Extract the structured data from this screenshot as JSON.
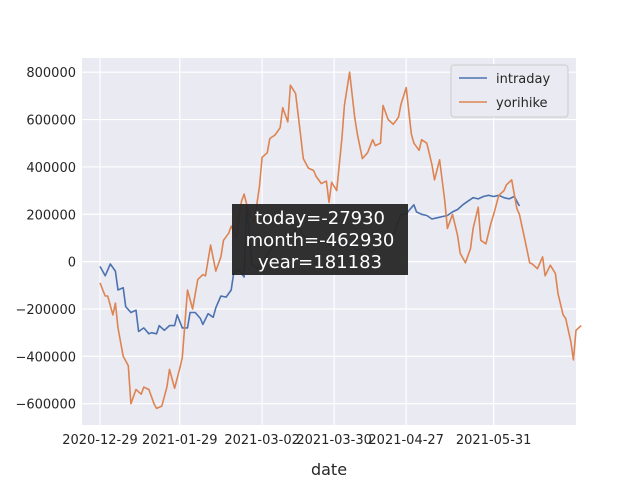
{
  "chart_data": {
    "type": "line",
    "xlabel": "date",
    "ylabel": "",
    "x_range": [
      "2020-12-22",
      "2021-07-02"
    ],
    "ylim": [
      -690000,
      860000
    ],
    "grid": true,
    "legend_position": "top-right",
    "x_ticks": [
      "2020-12-29",
      "2021-01-29",
      "2021-03-02",
      "2021-03-30",
      "2021-04-27",
      "2021-05-31"
    ],
    "y_ticks": [
      -600000,
      -400000,
      -200000,
      0,
      200000,
      400000,
      600000,
      800000
    ],
    "y_tick_labels": [
      "−600000",
      "−400000",
      "−200000",
      "0",
      "200000",
      "400000",
      "600000",
      "800000"
    ],
    "annotation": {
      "lines": [
        "today=-27930",
        "month=-462930",
        "year=181183"
      ],
      "anchor_date": "2021-03-02",
      "anchor_value": 110000
    },
    "colors": {
      "plot_background": "#eaeaf2",
      "grid": "#ffffff",
      "annotation_background": "#262626",
      "annotation_text": "#ffffff"
    },
    "series": [
      {
        "name": "intraday",
        "color": "#4c72b0",
        "points": [
          [
            "2020-12-29",
            -20000
          ],
          [
            "2020-12-31",
            -60000
          ],
          [
            "2021-01-02",
            -10000
          ],
          [
            "2021-01-04",
            -40000
          ],
          [
            "2021-01-05",
            -120000
          ],
          [
            "2021-01-07",
            -110000
          ],
          [
            "2021-01-08",
            -190000
          ],
          [
            "2021-01-10",
            -215000
          ],
          [
            "2021-01-12",
            -205000
          ],
          [
            "2021-01-13",
            -295000
          ],
          [
            "2021-01-15",
            -280000
          ],
          [
            "2021-01-17",
            -305000
          ],
          [
            "2021-01-18",
            -300000
          ],
          [
            "2021-01-20",
            -305000
          ],
          [
            "2021-01-21",
            -270000
          ],
          [
            "2021-01-23",
            -290000
          ],
          [
            "2021-01-25",
            -270000
          ],
          [
            "2021-01-27",
            -270000
          ],
          [
            "2021-01-28",
            -225000
          ],
          [
            "2021-01-30",
            -280000
          ],
          [
            "2021-02-01",
            -280000
          ],
          [
            "2021-02-02",
            -215000
          ],
          [
            "2021-02-04",
            -215000
          ],
          [
            "2021-02-06",
            -240000
          ],
          [
            "2021-02-07",
            -265000
          ],
          [
            "2021-02-09",
            -220000
          ],
          [
            "2021-02-11",
            -235000
          ],
          [
            "2021-02-12",
            -195000
          ],
          [
            "2021-02-14",
            -145000
          ],
          [
            "2021-02-16",
            -150000
          ],
          [
            "2021-02-18",
            -120000
          ],
          [
            "2021-02-19",
            -45000
          ],
          [
            "2021-02-21",
            -35000
          ],
          [
            "2021-02-23",
            -65000
          ],
          [
            "2021-02-24",
            240000
          ],
          [
            "2021-02-26",
            -10000
          ],
          [
            "2021-02-28",
            -30000
          ],
          [
            "2021-03-02",
            -10000
          ],
          [
            "2021-03-04",
            30000
          ],
          [
            "2021-03-06",
            60000
          ],
          [
            "2021-03-08",
            90000
          ],
          [
            "2021-03-10",
            100000
          ],
          [
            "2021-03-12",
            80000
          ],
          [
            "2021-03-14",
            120000
          ],
          [
            "2021-03-16",
            150000
          ],
          [
            "2021-03-18",
            110000
          ],
          [
            "2021-03-20",
            100000
          ],
          [
            "2021-03-22",
            90000
          ],
          [
            "2021-03-24",
            80000
          ],
          [
            "2021-03-26",
            90000
          ],
          [
            "2021-03-28",
            70000
          ],
          [
            "2021-03-30",
            80000
          ],
          [
            "2021-04-02",
            60000
          ],
          [
            "2021-04-05",
            70000
          ],
          [
            "2021-04-08",
            50000
          ],
          [
            "2021-04-11",
            60000
          ],
          [
            "2021-04-14",
            40000
          ],
          [
            "2021-04-17",
            80000
          ],
          [
            "2021-04-20",
            70000
          ],
          [
            "2021-04-23",
            140000
          ],
          [
            "2021-04-25",
            200000
          ],
          [
            "2021-04-27",
            200000
          ],
          [
            "2021-04-28",
            215000
          ],
          [
            "2021-04-30",
            240000
          ],
          [
            "2021-05-01",
            210000
          ],
          [
            "2021-05-03",
            200000
          ],
          [
            "2021-05-05",
            195000
          ],
          [
            "2021-05-07",
            180000
          ],
          [
            "2021-05-09",
            185000
          ],
          [
            "2021-05-11",
            190000
          ],
          [
            "2021-05-13",
            195000
          ],
          [
            "2021-05-15",
            210000
          ],
          [
            "2021-05-17",
            220000
          ],
          [
            "2021-05-19",
            240000
          ],
          [
            "2021-05-21",
            255000
          ],
          [
            "2021-05-23",
            270000
          ],
          [
            "2021-05-25",
            265000
          ],
          [
            "2021-05-27",
            275000
          ],
          [
            "2021-05-29",
            280000
          ],
          [
            "2021-05-31",
            275000
          ],
          [
            "2021-06-02",
            280000
          ],
          [
            "2021-06-04",
            270000
          ],
          [
            "2021-06-06",
            265000
          ],
          [
            "2021-06-08",
            275000
          ],
          [
            "2021-06-10",
            235000
          ]
        ]
      },
      {
        "name": "yorihike",
        "color": "#dd8452",
        "points": [
          [
            "2020-12-29",
            -90000
          ],
          [
            "2020-12-31",
            -145000
          ],
          [
            "2021-01-01",
            -145000
          ],
          [
            "2021-01-03",
            -225000
          ],
          [
            "2021-01-04",
            -175000
          ],
          [
            "2021-01-05",
            -280000
          ],
          [
            "2021-01-07",
            -400000
          ],
          [
            "2021-01-09",
            -440000
          ],
          [
            "2021-01-10",
            -600000
          ],
          [
            "2021-01-12",
            -540000
          ],
          [
            "2021-01-14",
            -560000
          ],
          [
            "2021-01-15",
            -530000
          ],
          [
            "2021-01-17",
            -540000
          ],
          [
            "2021-01-19",
            -600000
          ],
          [
            "2021-01-20",
            -620000
          ],
          [
            "2021-01-22",
            -610000
          ],
          [
            "2021-01-24",
            -530000
          ],
          [
            "2021-01-25",
            -455000
          ],
          [
            "2021-01-27",
            -535000
          ],
          [
            "2021-01-29",
            -450000
          ],
          [
            "2021-01-30",
            -405000
          ],
          [
            "2021-02-01",
            -120000
          ],
          [
            "2021-02-03",
            -200000
          ],
          [
            "2021-02-05",
            -75000
          ],
          [
            "2021-02-07",
            -55000
          ],
          [
            "2021-02-08",
            -60000
          ],
          [
            "2021-02-10",
            70000
          ],
          [
            "2021-02-12",
            -40000
          ],
          [
            "2021-02-14",
            20000
          ],
          [
            "2021-02-15",
            90000
          ],
          [
            "2021-02-17",
            120000
          ],
          [
            "2021-02-18",
            150000
          ],
          [
            "2021-02-20",
            100000
          ],
          [
            "2021-02-22",
            255000
          ],
          [
            "2021-02-23",
            285000
          ],
          [
            "2021-02-25",
            200000
          ],
          [
            "2021-02-27",
            170000
          ],
          [
            "2021-03-01",
            320000
          ],
          [
            "2021-03-02",
            440000
          ],
          [
            "2021-03-04",
            460000
          ],
          [
            "2021-03-05",
            520000
          ],
          [
            "2021-03-07",
            535000
          ],
          [
            "2021-03-09",
            565000
          ],
          [
            "2021-03-10",
            650000
          ],
          [
            "2021-03-12",
            590000
          ],
          [
            "2021-03-13",
            745000
          ],
          [
            "2021-03-15",
            710000
          ],
          [
            "2021-03-17",
            530000
          ],
          [
            "2021-03-18",
            435000
          ],
          [
            "2021-03-20",
            395000
          ],
          [
            "2021-03-22",
            385000
          ],
          [
            "2021-03-23",
            360000
          ],
          [
            "2021-03-25",
            330000
          ],
          [
            "2021-03-27",
            340000
          ],
          [
            "2021-03-28",
            250000
          ],
          [
            "2021-03-29",
            335000
          ],
          [
            "2021-03-31",
            300000
          ],
          [
            "2021-04-02",
            520000
          ],
          [
            "2021-04-03",
            660000
          ],
          [
            "2021-04-05",
            800000
          ],
          [
            "2021-04-07",
            610000
          ],
          [
            "2021-04-08",
            540000
          ],
          [
            "2021-04-10",
            435000
          ],
          [
            "2021-04-12",
            460000
          ],
          [
            "2021-04-14",
            515000
          ],
          [
            "2021-04-15",
            490000
          ],
          [
            "2021-04-17",
            500000
          ],
          [
            "2021-04-18",
            660000
          ],
          [
            "2021-04-20",
            600000
          ],
          [
            "2021-04-22",
            580000
          ],
          [
            "2021-04-24",
            610000
          ],
          [
            "2021-04-25",
            665000
          ],
          [
            "2021-04-27",
            735000
          ],
          [
            "2021-04-29",
            540000
          ],
          [
            "2021-04-30",
            500000
          ],
          [
            "2021-05-02",
            470000
          ],
          [
            "2021-05-03",
            515000
          ],
          [
            "2021-05-05",
            500000
          ],
          [
            "2021-05-07",
            410000
          ],
          [
            "2021-05-08",
            345000
          ],
          [
            "2021-05-10",
            430000
          ],
          [
            "2021-05-12",
            255000
          ],
          [
            "2021-05-13",
            140000
          ],
          [
            "2021-05-15",
            200000
          ],
          [
            "2021-05-17",
            110000
          ],
          [
            "2021-05-18",
            35000
          ],
          [
            "2021-05-20",
            -5000
          ],
          [
            "2021-05-22",
            55000
          ],
          [
            "2021-05-23",
            140000
          ],
          [
            "2021-05-25",
            230000
          ],
          [
            "2021-05-26",
            90000
          ],
          [
            "2021-05-28",
            75000
          ],
          [
            "2021-05-30",
            165000
          ],
          [
            "2021-05-31",
            200000
          ],
          [
            "2021-06-02",
            280000
          ],
          [
            "2021-06-04",
            300000
          ],
          [
            "2021-06-05",
            325000
          ],
          [
            "2021-06-07",
            345000
          ],
          [
            "2021-06-09",
            225000
          ],
          [
            "2021-06-10",
            200000
          ],
          [
            "2021-06-12",
            100000
          ],
          [
            "2021-06-14",
            -5000
          ],
          [
            "2021-06-15",
            -10000
          ],
          [
            "2021-06-17",
            -30000
          ],
          [
            "2021-06-19",
            20000
          ],
          [
            "2021-06-20",
            -60000
          ],
          [
            "2021-06-22",
            -15000
          ],
          [
            "2021-06-24",
            -50000
          ],
          [
            "2021-06-25",
            -135000
          ],
          [
            "2021-06-27",
            -225000
          ],
          [
            "2021-06-28",
            -240000
          ],
          [
            "2021-06-30",
            -340000
          ],
          [
            "2021-07-01",
            -415000
          ],
          [
            "2021-07-02",
            -290000
          ],
          [
            "2021-07-04",
            -270000
          ]
        ]
      }
    ]
  }
}
